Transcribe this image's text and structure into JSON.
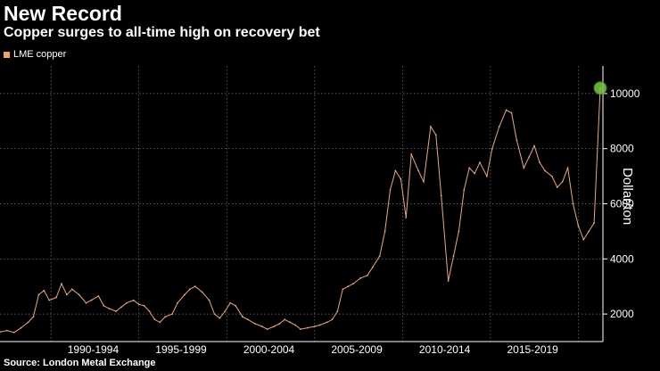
{
  "chart_data": {
    "type": "line",
    "title": "New Record",
    "subtitle": "Copper surges to all-time high on recovery bet",
    "legend": [
      "LME copper"
    ],
    "ylabel": "Dollar/ton",
    "source": "Source: London Metal Exchange",
    "xlim": [
      1987,
      2021.3
    ],
    "ylim": [
      1000,
      11000
    ],
    "y_ticks": [
      2000,
      4000,
      6000,
      8000,
      10000
    ],
    "y_tick_labels": [
      "2000",
      "4000",
      "6000",
      "8000",
      "10000"
    ],
    "x_period_labels": [
      "1990-1994",
      "1995-1999",
      "2000-2004",
      "2005-2009",
      "2010-2014",
      "2015-2019"
    ],
    "x_period_centers": [
      1992.3,
      1997.3,
      2002.3,
      2007.3,
      2012.3,
      2017.3
    ],
    "x_gridlines": [
      1989.9,
      1994.9,
      1999.9,
      2004.9,
      2009.9,
      2014.9,
      2019.9
    ],
    "grid": true,
    "highlight": {
      "x": 2021.15,
      "y": 10200
    },
    "colors": {
      "line": "#e8a87c",
      "legend": "#f0a35e",
      "highlight": "#7ac943",
      "grid": "#777777"
    },
    "series": [
      {
        "name": "LME copper",
        "points": [
          [
            1987.0,
            1350
          ],
          [
            1987.4,
            1400
          ],
          [
            1987.8,
            1330
          ],
          [
            1988.2,
            1500
          ],
          [
            1988.6,
            1700
          ],
          [
            1988.9,
            1900
          ],
          [
            1989.2,
            2700
          ],
          [
            1989.5,
            2850
          ],
          [
            1989.8,
            2500
          ],
          [
            1990.2,
            2600
          ],
          [
            1990.5,
            3100
          ],
          [
            1990.8,
            2700
          ],
          [
            1991.1,
            2900
          ],
          [
            1991.5,
            2700
          ],
          [
            1991.9,
            2400
          ],
          [
            1992.2,
            2500
          ],
          [
            1992.6,
            2650
          ],
          [
            1992.9,
            2300
          ],
          [
            1993.2,
            2200
          ],
          [
            1993.6,
            2100
          ],
          [
            1993.9,
            2250
          ],
          [
            1994.2,
            2400
          ],
          [
            1994.6,
            2500
          ],
          [
            1994.9,
            2350
          ],
          [
            1995.2,
            2300
          ],
          [
            1995.5,
            2100
          ],
          [
            1995.8,
            1800
          ],
          [
            1996.1,
            1700
          ],
          [
            1996.4,
            1900
          ],
          [
            1996.8,
            2000
          ],
          [
            1997.1,
            2400
          ],
          [
            1997.5,
            2700
          ],
          [
            1997.8,
            2900
          ],
          [
            1998.1,
            3000
          ],
          [
            1998.5,
            2800
          ],
          [
            1998.9,
            2500
          ],
          [
            1999.2,
            2000
          ],
          [
            1999.5,
            1850
          ],
          [
            1999.8,
            2100
          ],
          [
            2000.1,
            2400
          ],
          [
            2000.4,
            2300
          ],
          [
            2000.8,
            1900
          ],
          [
            2001.1,
            1800
          ],
          [
            2001.5,
            1650
          ],
          [
            2001.9,
            1550
          ],
          [
            2002.2,
            1450
          ],
          [
            2002.6,
            1550
          ],
          [
            2002.9,
            1650
          ],
          [
            2003.2,
            1800
          ],
          [
            2003.5,
            1700
          ],
          [
            2003.8,
            1600
          ],
          [
            2004.1,
            1450
          ],
          [
            2004.5,
            1500
          ],
          [
            2004.9,
            1550
          ],
          [
            2005.2,
            1600
          ],
          [
            2005.6,
            1700
          ],
          [
            2005.9,
            1800
          ],
          [
            2006.2,
            2100
          ],
          [
            2006.5,
            2900
          ],
          [
            2006.8,
            3000
          ],
          [
            2007.1,
            3100
          ],
          [
            2007.5,
            3300
          ],
          [
            2007.9,
            3400
          ],
          [
            2008.2,
            3700
          ],
          [
            2008.6,
            4100
          ],
          [
            2008.9,
            5000
          ],
          [
            2009.2,
            6500
          ],
          [
            2009.5,
            7200
          ],
          [
            2009.8,
            6900
          ],
          [
            2010.1,
            5500
          ],
          [
            2010.4,
            7800
          ],
          [
            2010.8,
            7200
          ],
          [
            2011.1,
            6800
          ],
          [
            2011.5,
            8800
          ],
          [
            2011.8,
            8500
          ],
          [
            2012.1,
            6300
          ],
          [
            2012.5,
            3200
          ],
          [
            2012.8,
            4100
          ],
          [
            2013.1,
            5000
          ],
          [
            2013.4,
            6500
          ],
          [
            2013.7,
            7300
          ],
          [
            2014.0,
            7100
          ],
          [
            2014.3,
            7500
          ],
          [
            2014.7,
            7000
          ],
          [
            2015.0,
            8000
          ],
          [
            2015.4,
            8800
          ],
          [
            2015.8,
            9400
          ],
          [
            2016.1,
            9300
          ],
          [
            2016.4,
            8300
          ],
          [
            2016.8,
            7300
          ],
          [
            2017.1,
            7700
          ],
          [
            2017.4,
            8100
          ],
          [
            2017.7,
            7500
          ],
          [
            2018.0,
            7200
          ],
          [
            2018.4,
            7000
          ],
          [
            2018.7,
            6600
          ],
          [
            2019.0,
            6800
          ],
          [
            2019.3,
            7300
          ],
          [
            2019.6,
            6000
          ],
          [
            2019.9,
            5200
          ],
          [
            2020.2,
            4700
          ],
          [
            2020.5,
            5000
          ],
          [
            2020.8,
            5300
          ],
          [
            2021.15,
            10200
          ]
        ]
      }
    ]
  }
}
